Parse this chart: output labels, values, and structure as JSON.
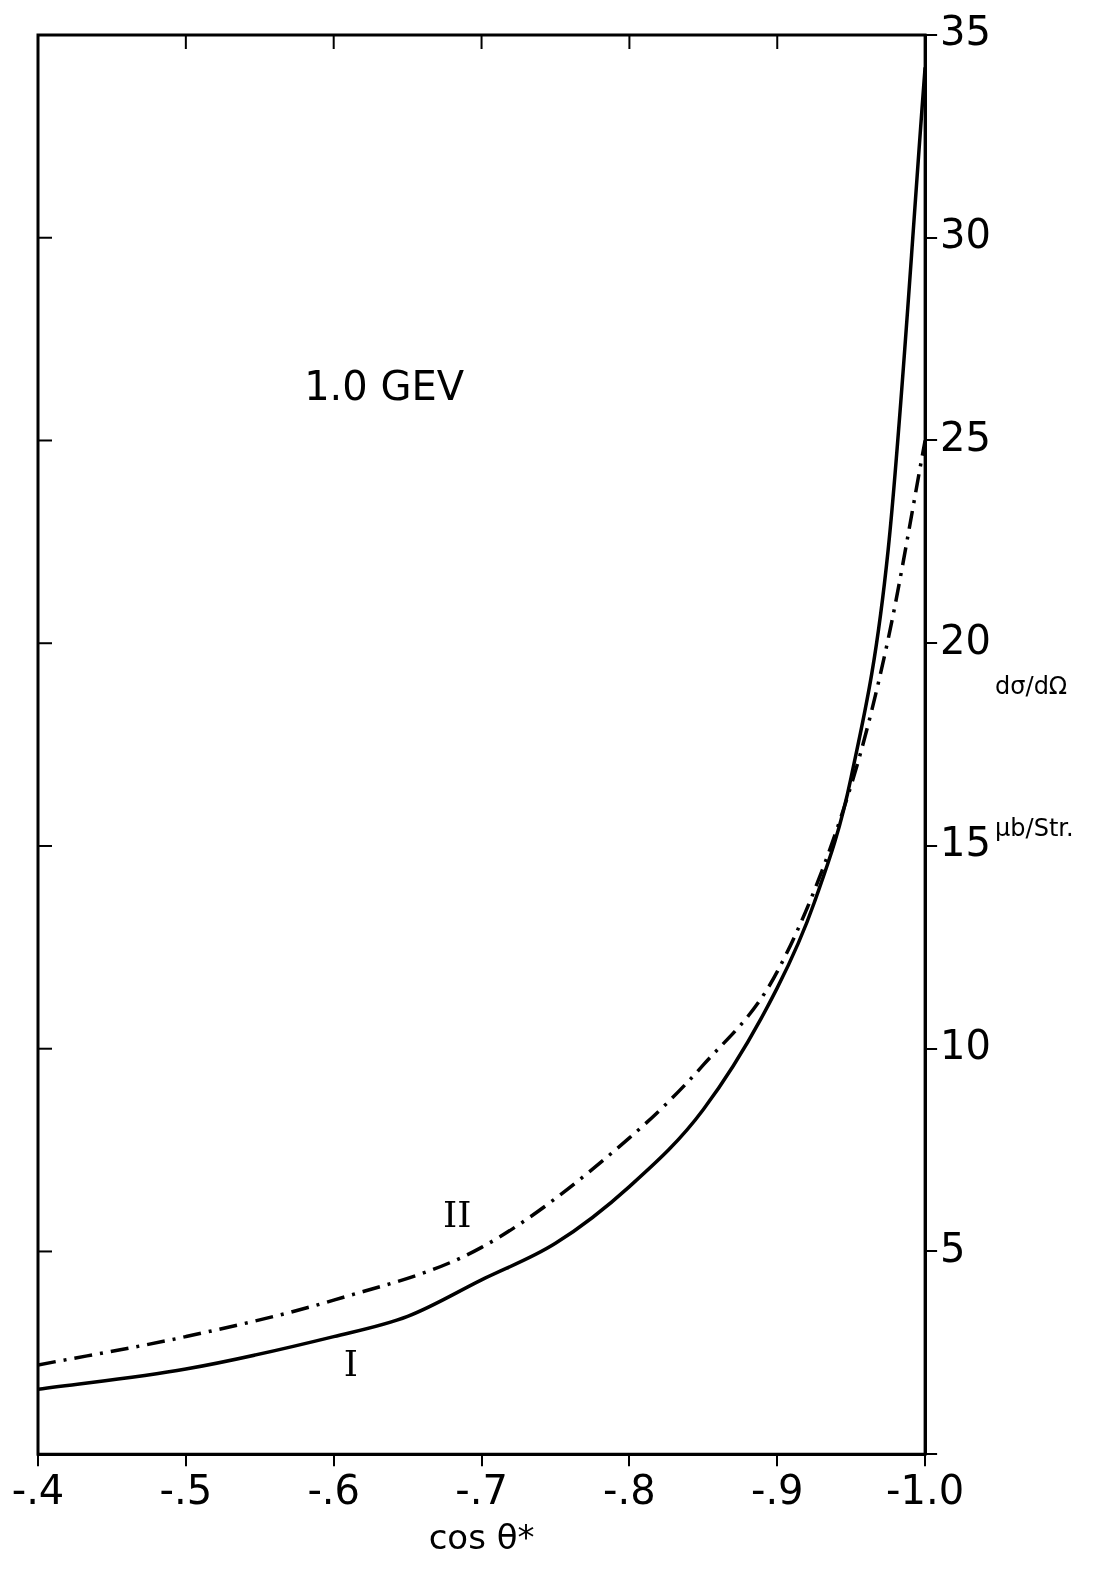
{
  "chart_data": {
    "type": "line",
    "xlabel": "cos θ*",
    "ylabel": "dσ/dΩ  μb/Str.",
    "annotations": [
      "1.0 GEV"
    ],
    "xlim": [
      -0.4,
      -1.0
    ],
    "xticks": [
      {
        "value": -0.4,
        "label": "-.4"
      },
      {
        "value": -0.5,
        "label": "-.5"
      },
      {
        "value": -0.6,
        "label": "-.6"
      },
      {
        "value": -0.7,
        "label": "-.7"
      },
      {
        "value": -0.8,
        "label": "-.8"
      },
      {
        "value": -0.9,
        "label": "-.9"
      },
      {
        "value": -1.0,
        "label": "-1.0"
      }
    ],
    "ylim": [
      0,
      35
    ],
    "yticks": [
      {
        "value": 0,
        "label": null
      },
      5,
      10,
      15,
      20,
      25,
      30,
      35
    ],
    "marker": "none",
    "legend": false,
    "series": [
      {
        "name": "I",
        "color": "#000000",
        "line_style": "solid",
        "x": [
          -0.4,
          -0.5,
          -0.6,
          -0.65,
          -0.7,
          -0.75,
          -0.8,
          -0.85,
          -0.9,
          -0.925,
          -0.95,
          -0.975,
          -1.0
        ],
        "values": [
          1.6,
          2.1,
          2.9,
          3.4,
          4.3,
          5.2,
          6.6,
          8.5,
          11.5,
          13.6,
          16.7,
          22.3,
          34.2
        ]
      },
      {
        "name": "II",
        "color": "#000000",
        "line_style": "dashed",
        "x": [
          -0.4,
          -0.5,
          -0.6,
          -0.7,
          -0.8,
          -0.85,
          -0.9,
          -0.95,
          -0.975,
          -1.0
        ],
        "values": [
          2.2,
          2.9,
          3.8,
          5.1,
          7.8,
          9.6,
          11.9,
          16.5,
          20.1,
          25.0
        ]
      }
    ]
  }
}
